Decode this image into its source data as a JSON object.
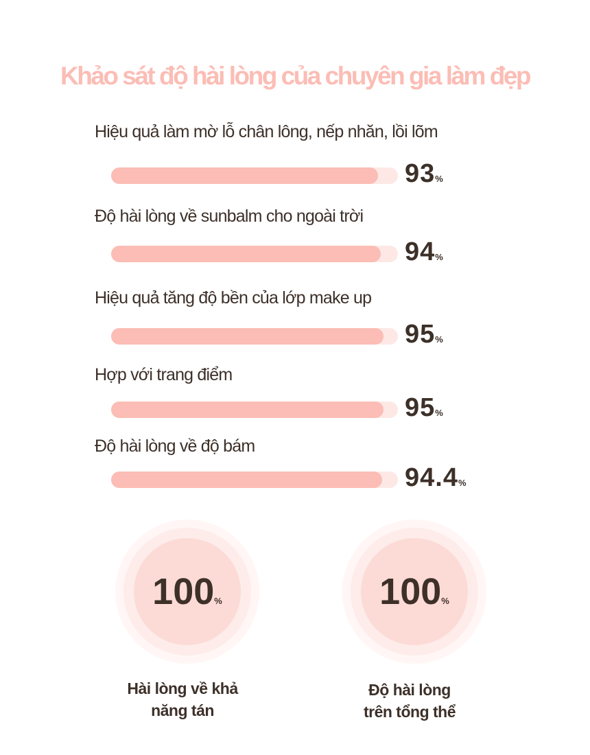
{
  "chart_data": {
    "type": "bar",
    "orientation": "horizontal",
    "title": "Khảo sát độ hài lòng của chuyên gia làm đẹp",
    "categories": [
      "Hiệu quả làm mờ lỗ chân lông, nếp nhăn, lồi lõm",
      "Độ hài lòng về sunbalm cho ngoài trời",
      "Hiệu quả tăng độ bền của lớp make up",
      "Hợp với trang điểm",
      "Độ hài lòng về độ bám"
    ],
    "values": [
      93,
      94,
      95,
      95,
      94.4
    ],
    "value_labels": [
      "93",
      "94",
      "95",
      "95",
      "94.4"
    ],
    "unit": "%",
    "xlim": [
      0,
      100
    ],
    "grid": false,
    "colors": {
      "fill": "#fbbdb5",
      "track": "#fde8e5",
      "title": "#fbbdb5",
      "text": "#3d3029"
    }
  },
  "highlights": [
    {
      "value": "100",
      "unit": "%",
      "label_lines": [
        "Hài lòng về khả",
        "năng tán"
      ]
    },
    {
      "value": "100",
      "unit": "%",
      "label_lines": [
        "Độ hài lòng",
        "trên tổng thể"
      ]
    }
  ]
}
